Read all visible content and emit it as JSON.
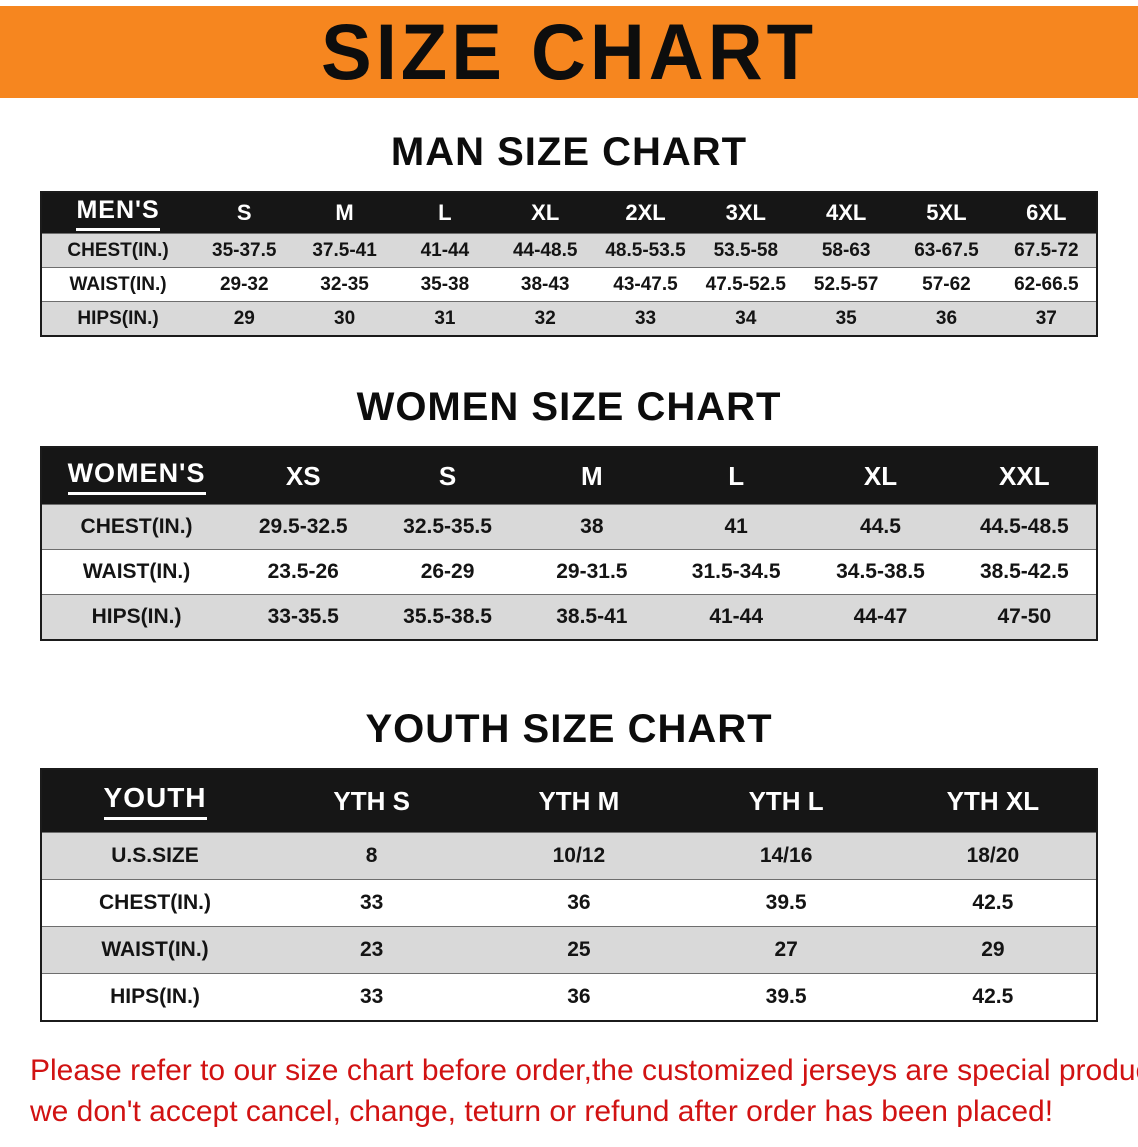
{
  "banner": {
    "title": "SIZE CHART"
  },
  "colors": {
    "banner_bg": "#f6861f",
    "header_bg": "#161616",
    "row_gray": "#d9d9d9",
    "footer_red": "#d11212"
  },
  "men": {
    "heading": "MAN SIZE CHART",
    "header": [
      "MEN'S",
      "S",
      "M",
      "L",
      "XL",
      "2XL",
      "3XL",
      "4XL",
      "5XL",
      "6XL"
    ],
    "rows": [
      [
        "CHEST(IN.)",
        "35-37.5",
        "37.5-41",
        "41-44",
        "44-48.5",
        "48.5-53.5",
        "53.5-58",
        "58-63",
        "63-67.5",
        "67.5-72"
      ],
      [
        "WAIST(IN.)",
        "29-32",
        "32-35",
        "35-38",
        "38-43",
        "43-47.5",
        "47.5-52.5",
        "52.5-57",
        "57-62",
        "62-66.5"
      ],
      [
        "HIPS(IN.)",
        "29",
        "30",
        "31",
        "32",
        "33",
        "34",
        "35",
        "36",
        "37"
      ]
    ]
  },
  "women": {
    "heading": "WOMEN SIZE CHART",
    "header": [
      "WOMEN'S",
      "XS",
      "S",
      "M",
      "L",
      "XL",
      "XXL"
    ],
    "rows": [
      [
        "CHEST(IN.)",
        "29.5-32.5",
        "32.5-35.5",
        "38",
        "41",
        "44.5",
        "44.5-48.5"
      ],
      [
        "WAIST(IN.)",
        "23.5-26",
        "26-29",
        "29-31.5",
        "31.5-34.5",
        "34.5-38.5",
        "38.5-42.5"
      ],
      [
        "HIPS(IN.)",
        "33-35.5",
        "35.5-38.5",
        "38.5-41",
        "41-44",
        "44-47",
        "47-50"
      ]
    ]
  },
  "youth": {
    "heading": "YOUTH SIZE CHART",
    "header": [
      "YOUTH",
      "YTH S",
      "YTH M",
      "YTH L",
      "YTH XL"
    ],
    "rows": [
      [
        "U.S.SIZE",
        "8",
        "10/12",
        "14/16",
        "18/20"
      ],
      [
        "CHEST(IN.)",
        "33",
        "36",
        "39.5",
        "42.5"
      ],
      [
        "WAIST(IN.)",
        "23",
        "25",
        "27",
        "29"
      ],
      [
        "HIPS(IN.)",
        "33",
        "36",
        "39.5",
        "42.5"
      ]
    ]
  },
  "footer": {
    "line1": "Please refer to our size chart before order,the customized jerseys are special products,",
    "line2": "we don't accept cancel, change, teturn or refund after order has been placed!"
  }
}
